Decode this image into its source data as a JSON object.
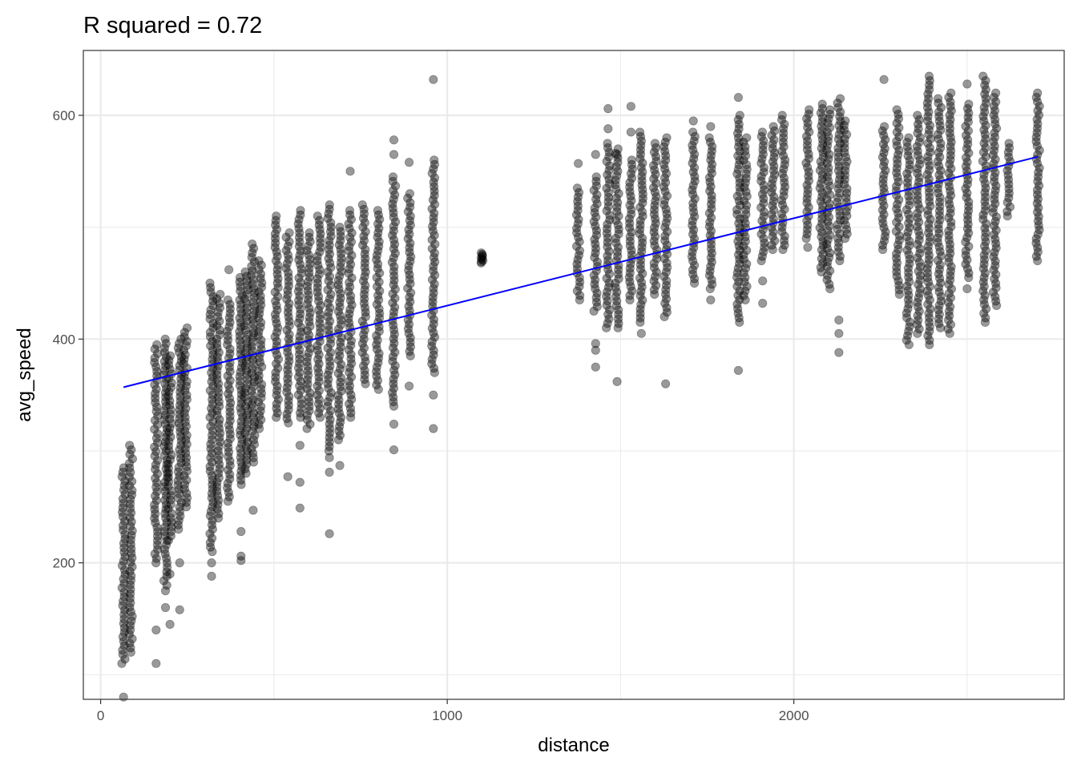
{
  "chart_data": {
    "type": "scatter",
    "title": "R squared = 0.72",
    "xlabel": "distance",
    "ylabel": "avg_speed",
    "xlim": [
      -50,
      2780
    ],
    "ylim": [
      78,
      658
    ],
    "x_ticks": [
      0,
      1000,
      2000
    ],
    "y_ticks": [
      200,
      400,
      600
    ],
    "grid": true,
    "point_color": "#000000",
    "point_opacity": 0.4,
    "fit_line_color": "#0000ff",
    "fit_line": {
      "x": [
        66,
        2704
      ],
      "y": [
        357,
        563
      ]
    },
    "columns": [
      {
        "x": 66,
        "ymin": 110,
        "ymax": 285,
        "outliers": [
          80
        ]
      },
      {
        "x": 87,
        "ymin": 120,
        "ymax": 305,
        "outliers": []
      },
      {
        "x": 160,
        "ymin": 200,
        "ymax": 395,
        "outliers": [
          140,
          110
        ]
      },
      {
        "x": 187,
        "ymin": 180,
        "ymax": 400,
        "outliers": [
          175,
          160
        ]
      },
      {
        "x": 200,
        "ymin": 220,
        "ymax": 385,
        "outliers": [
          145,
          190
        ]
      },
      {
        "x": 228,
        "ymin": 230,
        "ymax": 400,
        "outliers": [
          158,
          200
        ]
      },
      {
        "x": 245,
        "ymin": 250,
        "ymax": 410,
        "outliers": []
      },
      {
        "x": 320,
        "ymin": 210,
        "ymax": 450,
        "outliers": [
          188,
          200
        ]
      },
      {
        "x": 340,
        "ymin": 240,
        "ymax": 440,
        "outliers": []
      },
      {
        "x": 370,
        "ymin": 255,
        "ymax": 435,
        "outliers": [
          462
        ]
      },
      {
        "x": 405,
        "ymin": 270,
        "ymax": 455,
        "outliers": [
          202,
          206,
          228
        ]
      },
      {
        "x": 420,
        "ymin": 280,
        "ymax": 460,
        "outliers": []
      },
      {
        "x": 440,
        "ymin": 290,
        "ymax": 485,
        "outliers": [
          247
        ]
      },
      {
        "x": 460,
        "ymin": 320,
        "ymax": 470,
        "outliers": []
      },
      {
        "x": 508,
        "ymin": 330,
        "ymax": 510,
        "outliers": []
      },
      {
        "x": 540,
        "ymin": 325,
        "ymax": 495,
        "outliers": [
          277
        ]
      },
      {
        "x": 575,
        "ymin": 330,
        "ymax": 515,
        "outliers": [
          249,
          272,
          305
        ]
      },
      {
        "x": 600,
        "ymin": 320,
        "ymax": 495,
        "outliers": []
      },
      {
        "x": 630,
        "ymin": 330,
        "ymax": 510,
        "outliers": []
      },
      {
        "x": 660,
        "ymin": 300,
        "ymax": 520,
        "outliers": [
          226,
          281,
          294
        ]
      },
      {
        "x": 690,
        "ymin": 310,
        "ymax": 500,
        "outliers": [
          287
        ]
      },
      {
        "x": 720,
        "ymin": 330,
        "ymax": 515,
        "outliers": [
          550
        ]
      },
      {
        "x": 760,
        "ymin": 360,
        "ymax": 520,
        "outliers": []
      },
      {
        "x": 800,
        "ymin": 355,
        "ymax": 515,
        "outliers": []
      },
      {
        "x": 846,
        "ymin": 340,
        "ymax": 545,
        "outliers": [
          301,
          324,
          565,
          578
        ]
      },
      {
        "x": 890,
        "ymin": 385,
        "ymax": 530,
        "outliers": [
          358,
          558
        ]
      },
      {
        "x": 960,
        "ymin": 370,
        "ymax": 560,
        "outliers": [
          320,
          350,
          632
        ]
      },
      {
        "x": 1100,
        "ymin": 468,
        "ymax": 477,
        "outliers": []
      },
      {
        "x": 1378,
        "ymin": 435,
        "ymax": 535,
        "outliers": [
          557
        ]
      },
      {
        "x": 1428,
        "ymin": 425,
        "ymax": 545,
        "outliers": [
          396,
          390,
          375,
          565
        ]
      },
      {
        "x": 1464,
        "ymin": 410,
        "ymax": 575,
        "outliers": [
          588,
          606
        ]
      },
      {
        "x": 1490,
        "ymin": 410,
        "ymax": 570,
        "outliers": [
          362,
          565
        ]
      },
      {
        "x": 1530,
        "ymin": 435,
        "ymax": 560,
        "outliers": [
          608,
          585
        ]
      },
      {
        "x": 1560,
        "ymin": 415,
        "ymax": 585,
        "outliers": [
          405
        ]
      },
      {
        "x": 1600,
        "ymin": 440,
        "ymax": 575,
        "outliers": []
      },
      {
        "x": 1630,
        "ymin": 420,
        "ymax": 580,
        "outliers": [
          360
        ]
      },
      {
        "x": 1710,
        "ymin": 450,
        "ymax": 585,
        "outliers": [
          595
        ]
      },
      {
        "x": 1760,
        "ymin": 445,
        "ymax": 580,
        "outliers": [
          435,
          590
        ]
      },
      {
        "x": 1840,
        "ymin": 415,
        "ymax": 600,
        "outliers": [
          372,
          616
        ]
      },
      {
        "x": 1860,
        "ymin": 435,
        "ymax": 580,
        "outliers": []
      },
      {
        "x": 1910,
        "ymin": 470,
        "ymax": 585,
        "outliers": [
          432,
          452
        ]
      },
      {
        "x": 1940,
        "ymin": 480,
        "ymax": 590,
        "outliers": []
      },
      {
        "x": 1970,
        "ymin": 480,
        "ymax": 600,
        "outliers": []
      },
      {
        "x": 2040,
        "ymin": 490,
        "ymax": 605,
        "outliers": [
          482
        ]
      },
      {
        "x": 2080,
        "ymin": 460,
        "ymax": 610,
        "outliers": []
      },
      {
        "x": 2100,
        "ymin": 445,
        "ymax": 605,
        "outliers": []
      },
      {
        "x": 2130,
        "ymin": 470,
        "ymax": 615,
        "outliers": [
          388,
          405,
          417
        ]
      },
      {
        "x": 2150,
        "ymin": 490,
        "ymax": 595,
        "outliers": []
      },
      {
        "x": 2260,
        "ymin": 480,
        "ymax": 590,
        "outliers": [
          632
        ]
      },
      {
        "x": 2300,
        "ymin": 440,
        "ymax": 605,
        "outliers": []
      },
      {
        "x": 2330,
        "ymin": 395,
        "ymax": 580,
        "outliers": []
      },
      {
        "x": 2360,
        "ymin": 405,
        "ymax": 600,
        "outliers": []
      },
      {
        "x": 2390,
        "ymin": 395,
        "ymax": 635,
        "outliers": []
      },
      {
        "x": 2420,
        "ymin": 410,
        "ymax": 615,
        "outliers": []
      },
      {
        "x": 2450,
        "ymin": 405,
        "ymax": 620,
        "outliers": []
      },
      {
        "x": 2500,
        "ymin": 455,
        "ymax": 610,
        "outliers": [
          445,
          628
        ]
      },
      {
        "x": 2550,
        "ymin": 415,
        "ymax": 635,
        "outliers": []
      },
      {
        "x": 2580,
        "ymin": 430,
        "ymax": 620,
        "outliers": []
      },
      {
        "x": 2620,
        "ymin": 510,
        "ymax": 575,
        "outliers": []
      },
      {
        "x": 2704,
        "ymin": 470,
        "ymax": 620,
        "outliers": []
      }
    ]
  }
}
